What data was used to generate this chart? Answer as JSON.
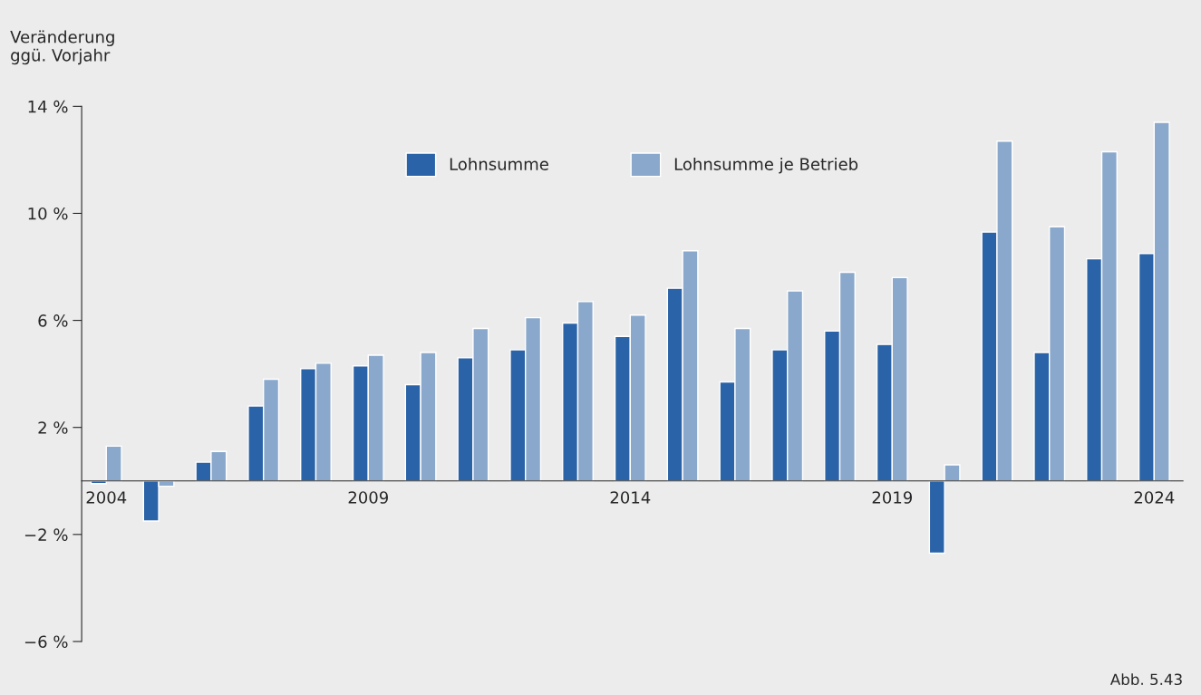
{
  "chart_data": {
    "type": "bar",
    "ylabel": "Veränderung\nggü. Vorjahr",
    "categories": [
      "2004",
      null,
      null,
      null,
      null,
      "2009",
      null,
      null,
      null,
      null,
      "2014",
      null,
      null,
      null,
      null,
      "2019",
      null,
      null,
      null,
      null,
      "2024"
    ],
    "series": [
      {
        "name": "Lohnsumme",
        "color": "#2a63a8",
        "values": [
          -0.1,
          -1.5,
          0.7,
          2.8,
          4.2,
          4.3,
          3.6,
          4.6,
          4.9,
          5.9,
          5.4,
          7.2,
          3.7,
          4.9,
          5.6,
          5.1,
          -2.7,
          9.3,
          4.8,
          8.3,
          8.5
        ]
      },
      {
        "name": "Lohnsumme je Betrieb",
        "color": "#8aa8cc",
        "values": [
          1.3,
          -0.2,
          1.1,
          3.8,
          4.4,
          4.7,
          4.8,
          5.7,
          6.1,
          6.7,
          6.2,
          8.6,
          5.7,
          7.1,
          7.8,
          7.6,
          0.6,
          12.7,
          9.5,
          12.3,
          13.4
        ]
      }
    ],
    "ylim": [
      -6,
      14
    ],
    "yticks": [
      {
        "value": -6,
        "label": "−6 %"
      },
      {
        "value": -2,
        "label": "−2 %"
      },
      {
        "value": 2,
        "label": "2 %"
      },
      {
        "value": 6,
        "label": "6 %"
      },
      {
        "value": 10,
        "label": "10 %"
      },
      {
        "value": 14,
        "label": "14 %"
      }
    ],
    "grid": false,
    "legend": "top",
    "annotations": [
      "Abb. 5.43"
    ]
  }
}
